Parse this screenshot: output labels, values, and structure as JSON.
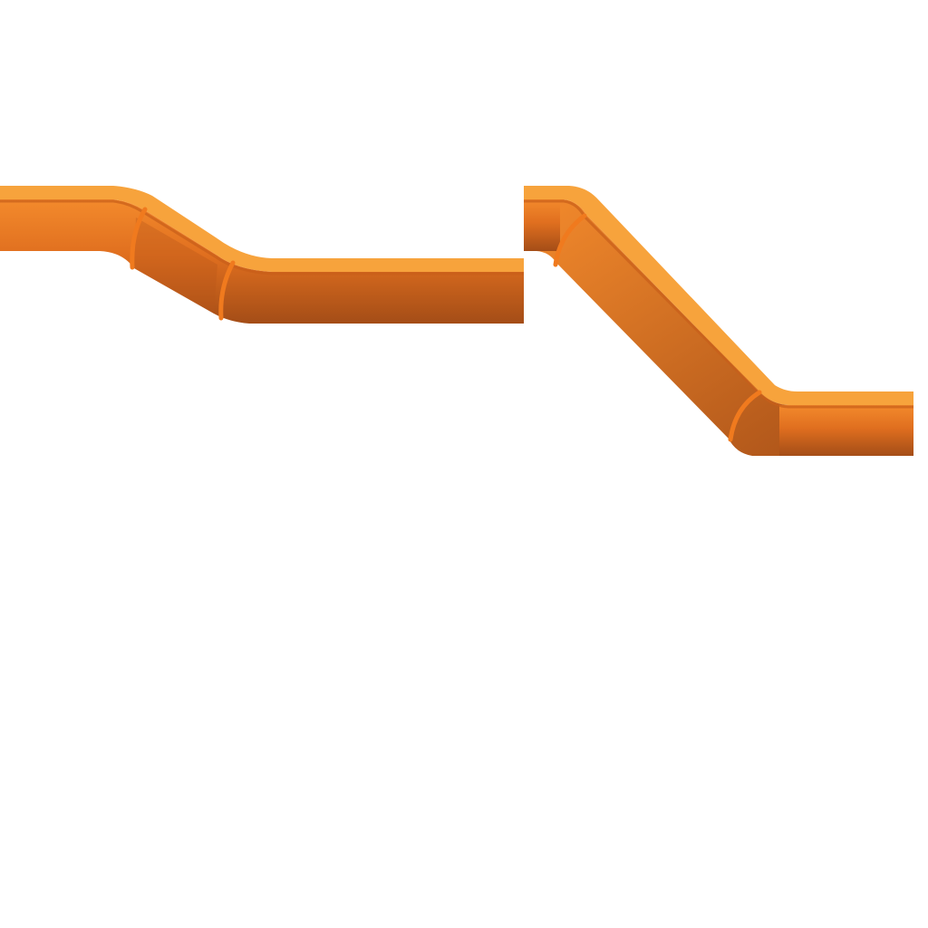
{
  "sprites": [
    {
      "name": "gentle-offset-pipe",
      "kind": "pipe-offset",
      "bend": "shallow"
    },
    {
      "name": "steep-offset-pipe",
      "kind": "pipe-offset",
      "bend": "45-degree"
    }
  ],
  "colors": {
    "background": "#ffffff",
    "pipe_light": "#f7a33c",
    "pipe_mid": "#e0701f",
    "pipe_dark": "#a24c17",
    "joint": "#f07a1e"
  }
}
